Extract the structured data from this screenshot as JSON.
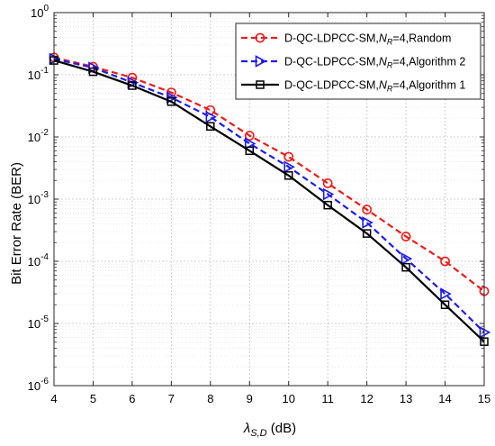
{
  "chart_data": {
    "type": "line",
    "title": "",
    "ylabel": "Bit Error Rate (BER)",
    "xlabel": {
      "symbol": "λ",
      "subscript": "S,D",
      "unit": " (dB)"
    },
    "x": [
      4,
      5,
      6,
      7,
      8,
      9,
      10,
      11,
      12,
      13,
      14,
      15
    ],
    "xlim": [
      4,
      15
    ],
    "ylim": [
      1e-06,
      1
    ],
    "yscale": "log",
    "grid": true,
    "minor_grid": true,
    "legend_position": "top-right",
    "x_tick_labels": [
      "4",
      "5",
      "6",
      "7",
      "8",
      "9",
      "10",
      "11",
      "12",
      "13",
      "14",
      "15"
    ],
    "y_ticks": [
      {
        "exp": "0"
      },
      {
        "exp": "-1"
      },
      {
        "exp": "-2"
      },
      {
        "exp": "-3"
      },
      {
        "exp": "-4"
      },
      {
        "exp": "-5"
      },
      {
        "exp": "-6"
      }
    ],
    "series": [
      {
        "name": "D-QC-LDPCC-SM,N_R=4,Random",
        "legend": {
          "prefix": "D-QC-LDPCC-SM,",
          "var": "N",
          "sub": "R",
          "suffix": "=4,Random"
        },
        "color": "#ee1c1c",
        "line": "dashed",
        "marker": "circle",
        "values": [
          0.19,
          0.135,
          0.09,
          0.052,
          0.027,
          0.0105,
          0.0048,
          0.0018,
          0.00068,
          0.00025,
          0.0001,
          3.3e-05
        ]
      },
      {
        "name": "D-QC-LDPCC-SM,N_R=4,Algorithm 2",
        "legend": {
          "prefix": "D-QC-LDPCC-SM,",
          "var": "N",
          "sub": "R",
          "suffix": "=4,Algorithm 2"
        },
        "color": "#1c1cee",
        "line": "dashed",
        "marker": "triangle-right",
        "values": [
          0.18,
          0.13,
          0.075,
          0.043,
          0.021,
          0.0078,
          0.0033,
          0.0012,
          0.00042,
          0.00011,
          3e-05,
          7.2e-06
        ]
      },
      {
        "name": "D-QC-LDPCC-SM,N_R=4,Algorithm 1",
        "legend": {
          "prefix": "D-QC-LDPCC-SM,",
          "var": "N",
          "sub": "R",
          "suffix": "=4,Algorithm 1"
        },
        "color": "#000000",
        "line": "solid",
        "marker": "square",
        "values": [
          0.17,
          0.112,
          0.067,
          0.037,
          0.0148,
          0.006,
          0.0024,
          0.0008,
          0.00028,
          8e-05,
          2e-05,
          5.1e-06
        ]
      }
    ]
  }
}
